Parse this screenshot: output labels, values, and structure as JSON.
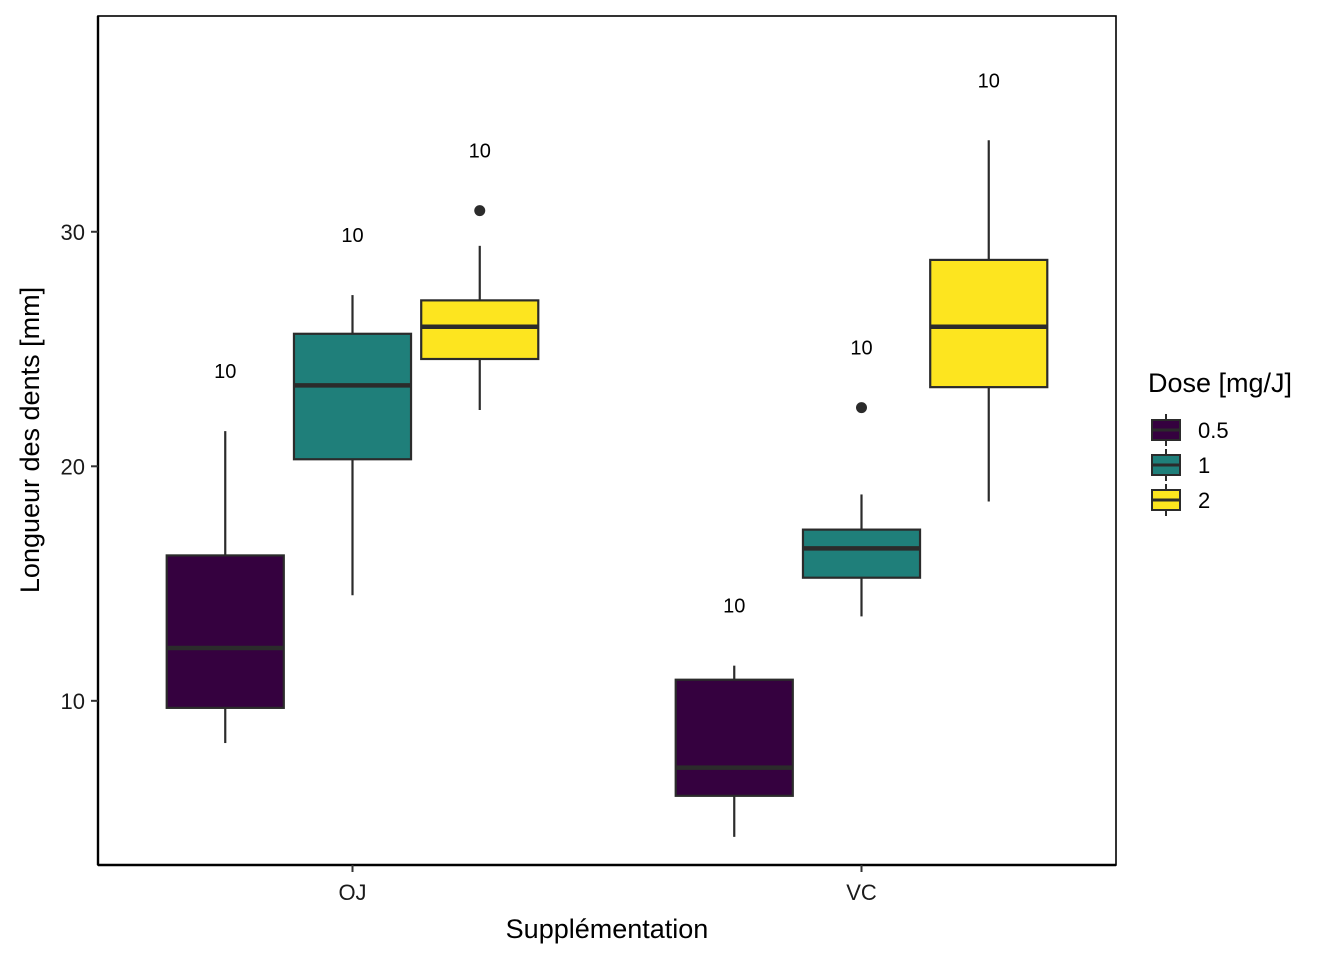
{
  "chart_data": {
    "type": "boxplot",
    "xlabel": "Supplémentation",
    "ylabel": "Longueur des dents  [mm]",
    "categories": [
      "OJ",
      "VC"
    ],
    "ylim": [
      3.0,
      39.2
    ],
    "yticks": [
      10,
      20,
      30
    ],
    "grid": false,
    "legend": {
      "title": "Dose  [mg/J]",
      "placement": "right"
    },
    "colors": {
      "0.5": "#35013f",
      "1": "#1f7f7a",
      "2": "#fde51f",
      "outline": "#2b2b2b",
      "frame": "#000000"
    },
    "series": [
      {
        "name": "0.5",
        "boxes": [
          {
            "category": "OJ",
            "lower_whisker": 8.2,
            "q1": 9.7,
            "median": 12.25,
            "q3": 16.2,
            "upper_whisker": 21.5,
            "outliers": [],
            "count_label": "10"
          },
          {
            "category": "VC",
            "lower_whisker": 4.2,
            "q1": 5.95,
            "median": 7.15,
            "q3": 10.9,
            "upper_whisker": 11.5,
            "outliers": [],
            "count_label": "10"
          }
        ]
      },
      {
        "name": "1",
        "boxes": [
          {
            "category": "OJ",
            "lower_whisker": 14.5,
            "q1": 20.3,
            "median": 23.45,
            "q3": 25.65,
            "upper_whisker": 27.3,
            "outliers": [],
            "count_label": "10"
          },
          {
            "category": "VC",
            "lower_whisker": 13.6,
            "q1": 15.25,
            "median": 16.5,
            "q3": 17.3,
            "upper_whisker": 18.8,
            "outliers": [
              22.5
            ],
            "count_label": "10"
          }
        ]
      },
      {
        "name": "2",
        "boxes": [
          {
            "category": "OJ",
            "lower_whisker": 22.4,
            "q1": 24.575,
            "median": 25.95,
            "q3": 27.075,
            "upper_whisker": 29.4,
            "outliers": [
              30.9
            ],
            "count_label": "10"
          },
          {
            "category": "VC",
            "lower_whisker": 18.5,
            "q1": 23.375,
            "median": 25.95,
            "q3": 28.8,
            "upper_whisker": 33.9,
            "outliers": [],
            "count_label": "10"
          }
        ]
      }
    ]
  }
}
